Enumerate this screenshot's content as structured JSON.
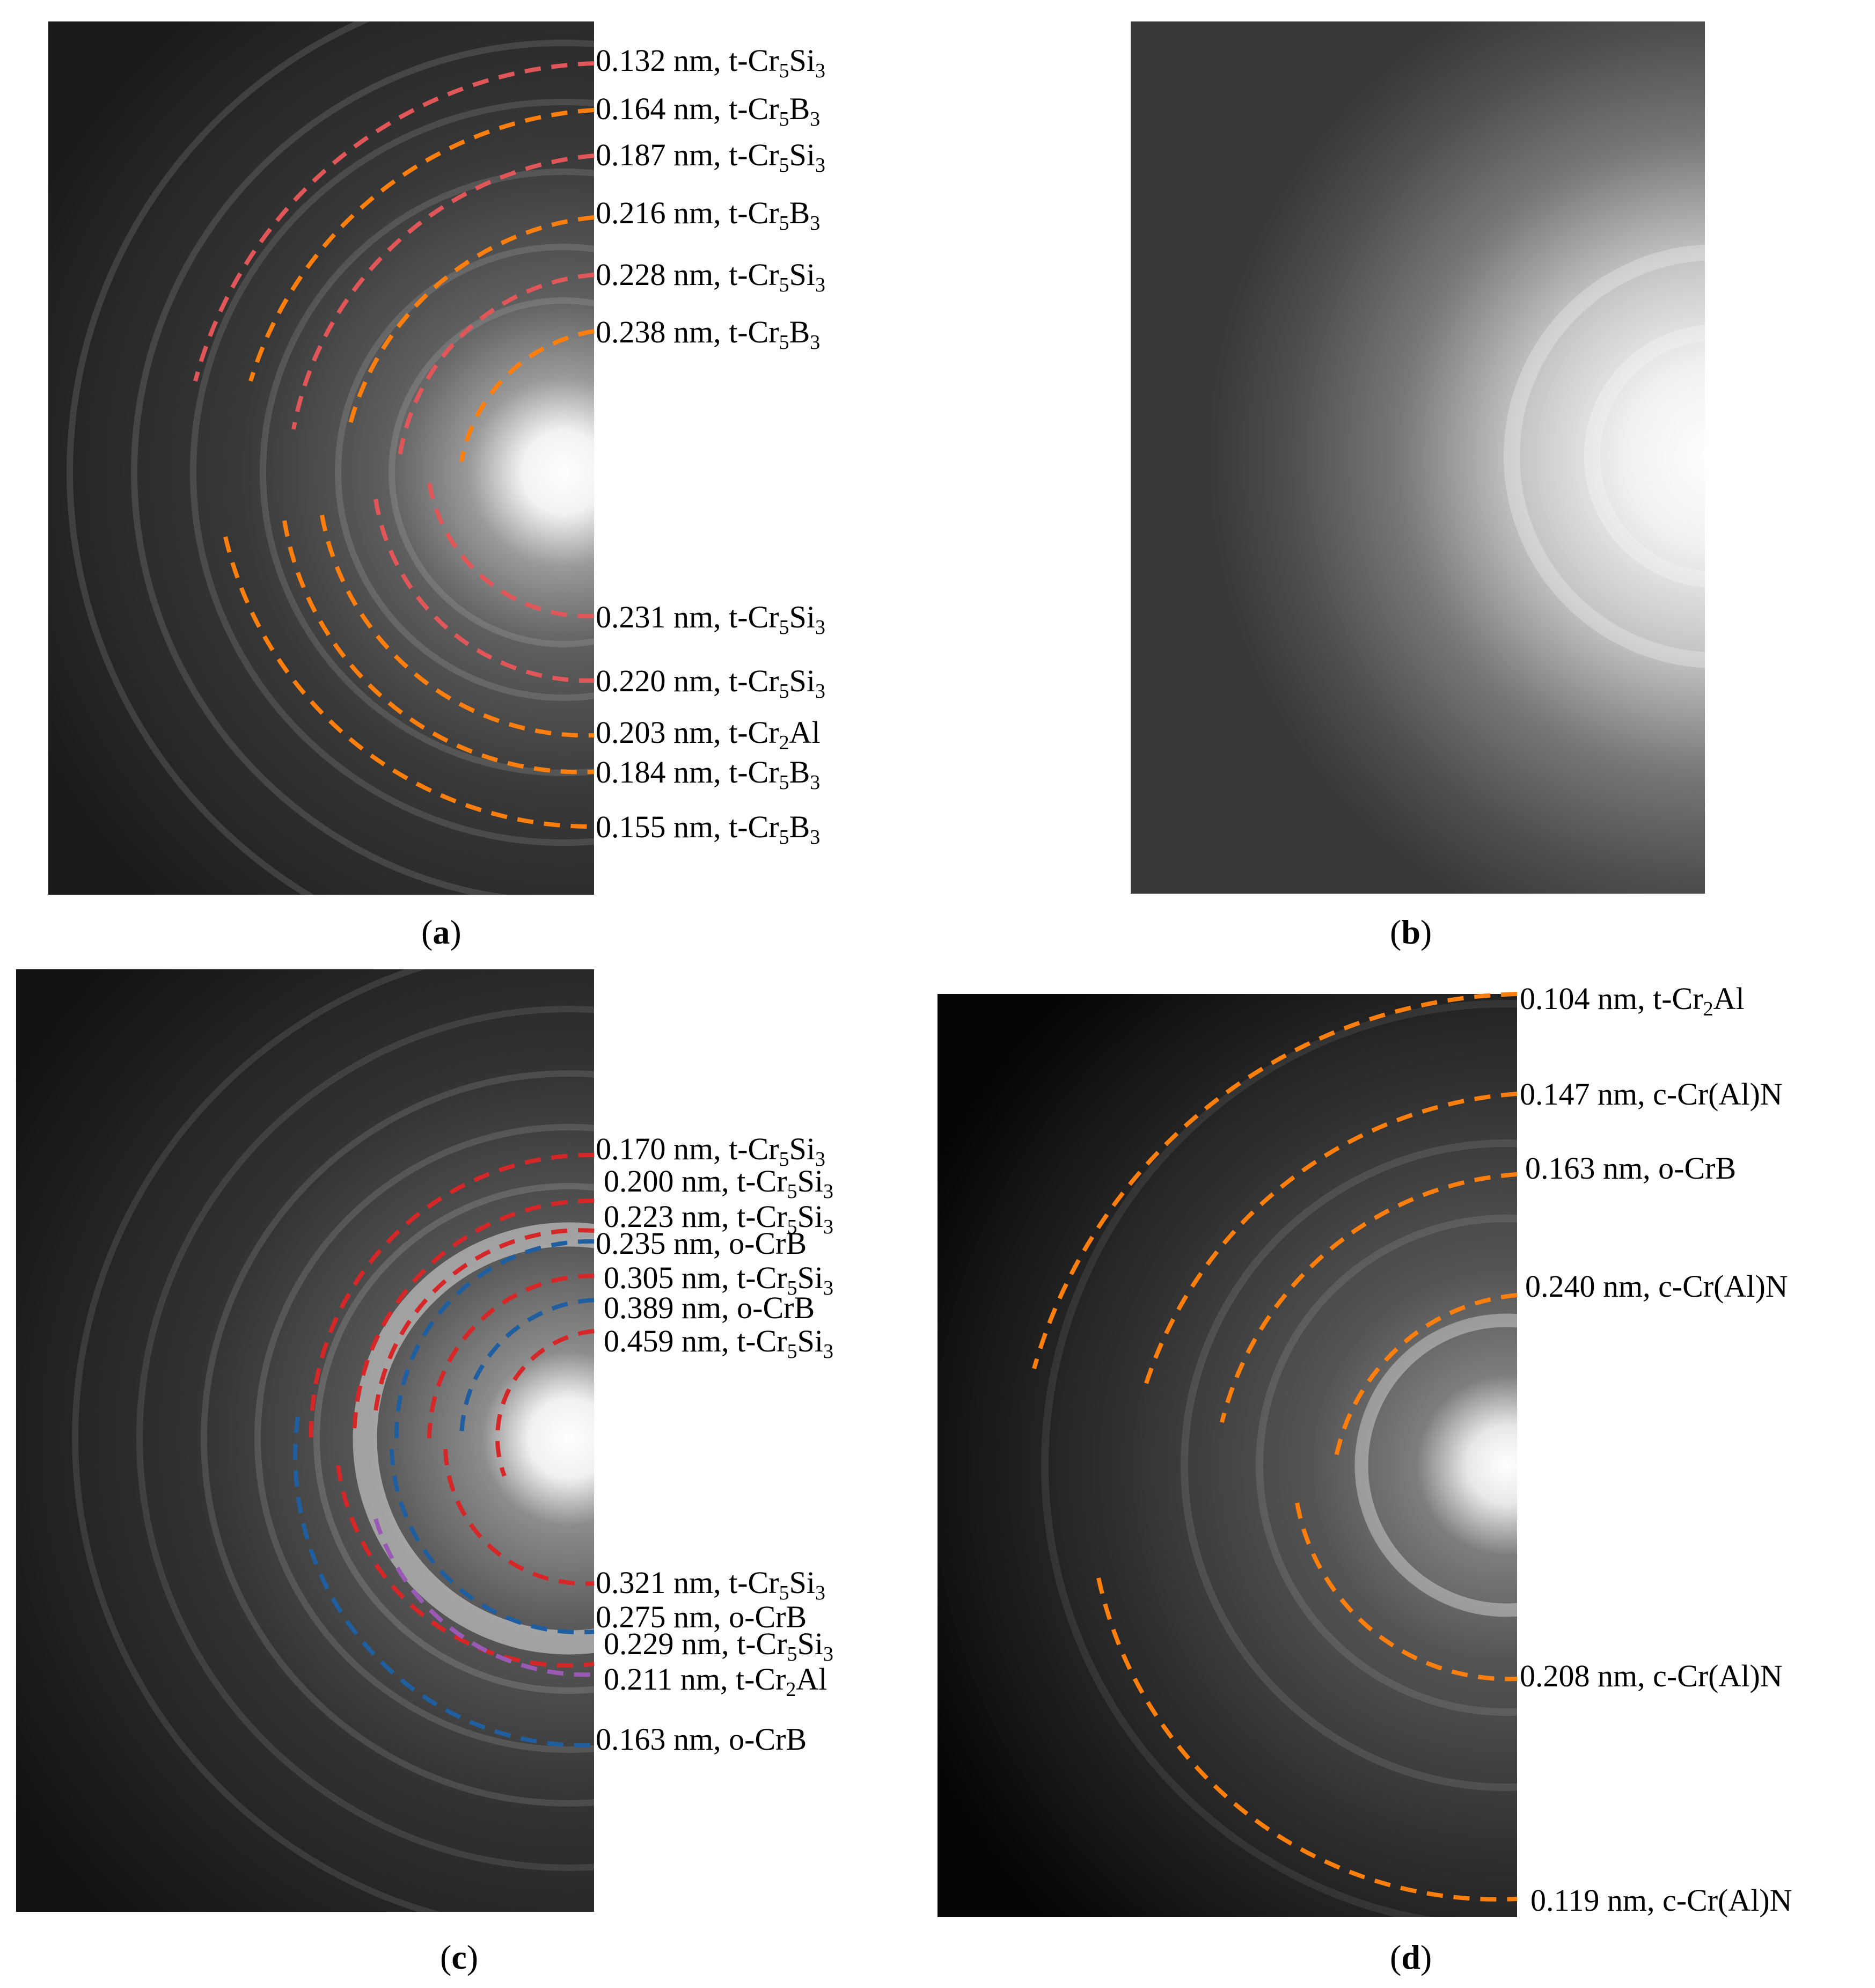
{
  "panels": [
    {
      "id": "a",
      "caption": "a",
      "labels": [
        {
          "d": "0.132 nm",
          "phase": "t-Cr",
          "s1": "5",
          "e2": "Si",
          "s2": "3",
          "color": "#e15759"
        },
        {
          "d": "0.164 nm",
          "phase": "t-Cr",
          "s1": "5",
          "e2": "B",
          "s2": "3",
          "color": "#ff7f0e"
        },
        {
          "d": "0.187 nm",
          "phase": "t-Cr",
          "s1": "5",
          "e2": "Si",
          "s2": "3",
          "color": "#e15759"
        },
        {
          "d": "0.216 nm",
          "phase": "t-Cr",
          "s1": "5",
          "e2": "B",
          "s2": "3",
          "color": "#ff7f0e"
        },
        {
          "d": "0.228 nm",
          "phase": "t-Cr",
          "s1": "5",
          "e2": "Si",
          "s2": "3",
          "color": "#e15759"
        },
        {
          "d": "0.238 nm",
          "phase": "t-Cr",
          "s1": "5",
          "e2": "B",
          "s2": "3",
          "color": "#ff7f0e"
        },
        {
          "d": "0.231 nm",
          "phase": "t-Cr",
          "s1": "5",
          "e2": "Si",
          "s2": "3",
          "color": "#e15759"
        },
        {
          "d": "0.220 nm",
          "phase": "t-Cr",
          "s1": "5",
          "e2": "Si",
          "s2": "3",
          "color": "#e15759"
        },
        {
          "d": "0.203 nm",
          "phase": "t-Cr",
          "s1": "2",
          "e2": "Al",
          "s2": "",
          "color": "#ff7f0e"
        },
        {
          "d": "0.184 nm",
          "phase": "t-Cr",
          "s1": "5",
          "e2": "B",
          "s2": "3",
          "color": "#ff7f0e"
        },
        {
          "d": "0.155 nm",
          "phase": "t-Cr",
          "s1": "5",
          "e2": "B",
          "s2": "3",
          "color": "#ff7f0e"
        }
      ]
    },
    {
      "id": "b",
      "caption": "b",
      "labels": []
    },
    {
      "id": "c",
      "caption": "c",
      "labels": [
        {
          "d": "0.170 nm",
          "phase": "t-Cr",
          "s1": "5",
          "e2": "Si",
          "s2": "3",
          "color": "#d62728"
        },
        {
          "d": "0.200 nm",
          "phase": "t-Cr",
          "s1": "5",
          "e2": "Si",
          "s2": "3",
          "color": "#d62728"
        },
        {
          "d": "0.223 nm",
          "phase": "t-Cr",
          "s1": "5",
          "e2": "Si",
          "s2": "3",
          "color": "#d62728"
        },
        {
          "d": "0.235 nm",
          "phase": "o-CrB",
          "s1": "",
          "e2": "",
          "s2": "",
          "color": "#1f5fa0"
        },
        {
          "d": "0.305 nm",
          "phase": "t-Cr",
          "s1": "5",
          "e2": "Si",
          "s2": "3",
          "color": "#d62728"
        },
        {
          "d": "0.389 nm",
          "phase": "o-CrB",
          "s1": "",
          "e2": "",
          "s2": "",
          "color": "#1f5fa0"
        },
        {
          "d": "0.459 nm",
          "phase": "t-Cr",
          "s1": "5",
          "e2": "Si",
          "s2": "3",
          "color": "#d62728"
        },
        {
          "d": "0.321 nm",
          "phase": "t-Cr",
          "s1": "5",
          "e2": "Si",
          "s2": "3",
          "color": "#d62728"
        },
        {
          "d": "0.275 nm",
          "phase": "o-CrB",
          "s1": "",
          "e2": "",
          "s2": "",
          "color": "#1f5fa0"
        },
        {
          "d": "0.229 nm",
          "phase": "t-Cr",
          "s1": "5",
          "e2": "Si",
          "s2": "3",
          "color": "#d62728"
        },
        {
          "d": "0.211 nm",
          "phase": "t-Cr",
          "s1": "2",
          "e2": "Al",
          "s2": "",
          "color": "#9b59b6"
        },
        {
          "d": "0.163 nm",
          "phase": "o-CrB",
          "s1": "",
          "e2": "",
          "s2": "",
          "color": "#1f5fa0"
        }
      ]
    },
    {
      "id": "d",
      "caption": "d",
      "labels": [
        {
          "d": "0.104 nm",
          "phase": "t-Cr",
          "s1": "2",
          "e2": "Al",
          "s2": "",
          "color": "#ff7f0e"
        },
        {
          "d": "0.147 nm",
          "phase": "c-Cr(Al)N",
          "s1": "",
          "e2": "",
          "s2": "",
          "color": "#ff7f0e"
        },
        {
          "d": "0.163 nm",
          "phase": "o-CrB",
          "s1": "",
          "e2": "",
          "s2": "",
          "color": "#ff7f0e"
        },
        {
          "d": "0.240 nm",
          "phase": "c-Cr(Al)N",
          "s1": "",
          "e2": "",
          "s2": "",
          "color": "#ff7f0e"
        },
        {
          "d": "0.208 nm",
          "phase": "c-Cr(Al)N",
          "s1": "",
          "e2": "",
          "s2": "",
          "color": "#ff7f0e"
        },
        {
          "d": "0.119 nm",
          "phase": "c-Cr(Al)N",
          "s1": "",
          "e2": "",
          "s2": "",
          "color": "#ff7f0e"
        }
      ]
    }
  ]
}
